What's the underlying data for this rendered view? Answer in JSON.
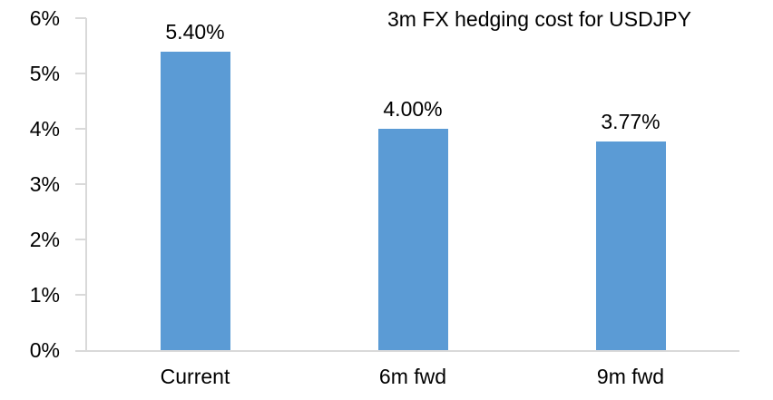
{
  "chart_data": {
    "type": "bar",
    "title": "3m FX hedging cost for USDJPY",
    "categories": [
      "Current",
      "6m fwd",
      "9m fwd"
    ],
    "values": [
      5.4,
      4.0,
      3.77
    ],
    "data_labels": [
      "5.40%",
      "4.00%",
      "3.77%"
    ],
    "ytick_labels": [
      "0%",
      "1%",
      "2%",
      "3%",
      "4%",
      "5%",
      "6%"
    ],
    "ytick_values": [
      0,
      1,
      2,
      3,
      4,
      5,
      6
    ],
    "ylim": [
      0,
      6
    ],
    "xlabel": "",
    "ylabel": "",
    "grid": false,
    "legend_position": "none",
    "bar_color": "#5B9BD5",
    "axis_color": "#D9D9D9",
    "text_color": "#000000",
    "background_color": "#FFFFFF"
  }
}
